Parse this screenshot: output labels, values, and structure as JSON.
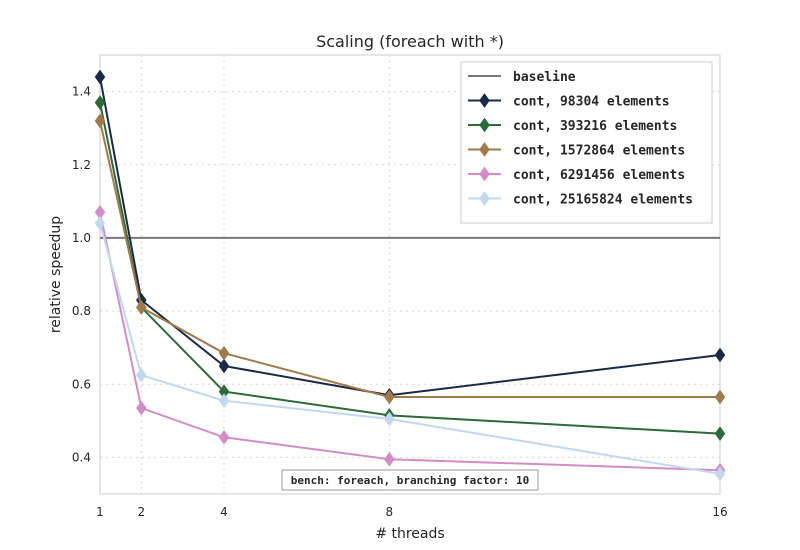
{
  "chart_data": {
    "type": "line",
    "title": "Scaling (foreach with *)",
    "xlabel": "# threads",
    "ylabel": "relative speedup",
    "x": [
      1,
      2,
      4,
      8,
      16
    ],
    "xticks": [
      "1",
      "2",
      "4",
      "8",
      "16"
    ],
    "xlim": [
      1,
      16
    ],
    "yticks": [
      "0.4",
      "0.6",
      "0.8",
      "1.0",
      "1.2",
      "1.4"
    ],
    "ylim": [
      0.3,
      1.5
    ],
    "grid": true,
    "legend_position": "top-right",
    "baseline": {
      "name": "baseline",
      "value": 1.0,
      "color": "#777777"
    },
    "series": [
      {
        "name": "cont, 98304 elements",
        "color": "#1b2a44",
        "values": [
          1.44,
          0.83,
          0.65,
          0.57,
          0.68
        ]
      },
      {
        "name": "cont, 393216 elements",
        "color": "#2d6a3a",
        "values": [
          1.37,
          0.81,
          0.58,
          0.515,
          0.465
        ]
      },
      {
        "name": "cont, 1572864 elements",
        "color": "#a07a4a",
        "values": [
          1.32,
          0.81,
          0.685,
          0.565,
          0.565
        ]
      },
      {
        "name": "cont, 6291456 elements",
        "color": "#d48cc8",
        "values": [
          1.07,
          0.535,
          0.455,
          0.395,
          0.365
        ]
      },
      {
        "name": "cont, 25165824 elements",
        "color": "#c2d8ee",
        "values": [
          1.04,
          0.625,
          0.555,
          0.505,
          0.355
        ]
      }
    ],
    "annotation": "bench: foreach, branching factor: 10"
  }
}
